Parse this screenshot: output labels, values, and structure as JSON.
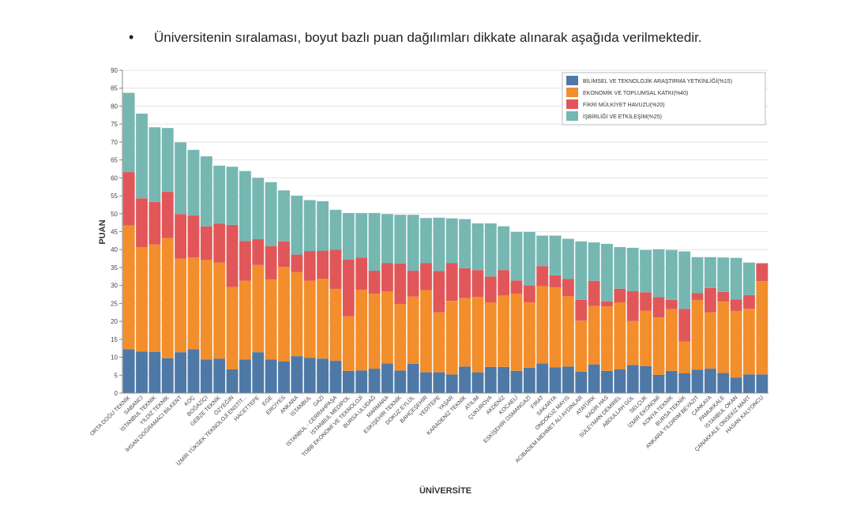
{
  "bullet": {
    "symbol": "•",
    "text": "Üniversitenin sıralaması, boyut bazlı puan dağılımları dikkate alınarak aşağıda verilmektedir."
  },
  "chart_data": {
    "type": "bar",
    "stacked": true,
    "title": "",
    "xlabel": "ÜNİVERSİTE",
    "ylabel": "PUAN",
    "ylim": [
      0,
      90
    ],
    "yticks": [
      0,
      5,
      10,
      15,
      20,
      25,
      30,
      35,
      40,
      45,
      50,
      55,
      60,
      65,
      70,
      75,
      80,
      85,
      90
    ],
    "grid": true,
    "legend_position": "top-right",
    "categories": [
      "ORTA DOĞU TEKNİK",
      "SABANCI",
      "İSTANBUL TEKNİK",
      "YILDIZ TEKNİK",
      "İHSAN DOĞRAMACI BİLKENT",
      "KOÇ",
      "BOĞAZİÇİ",
      "GEBZE TEKNİK",
      "ÖZYEĞİN",
      "İZMİR YÜKSEK TEKNOLOJİ ENSTİT...",
      "HACETTEPE",
      "EGE",
      "ERCİYES",
      "ANKARA",
      "İSTANBUL",
      "GAZİ",
      "İSTANBUL - CERRAHPAŞA",
      "İSTANBUL MEDİPOL",
      "TOBB EKONOMİ VE TEKNOLOJİ",
      "BURSA ULUDAĞ",
      "MARMARA",
      "ESKİŞEHİR TEKNİK",
      "DOKUZ EYLÜL",
      "BAHÇEŞEHİR",
      "YEDİTEPE",
      "YAŞAR",
      "KARADENİZ TEKNİK",
      "ATILIM",
      "ÇUKUROVA",
      "AKDENİZ",
      "KOCAELİ",
      "ESKİŞEHİR OSMANGAZİ",
      "FIRAT",
      "SAKARYA",
      "ONDOKUZ MAYIS",
      "ACIBADEM MEHMET ALİ AYDINLAR",
      "ATATÜRK",
      "KADİR HAS",
      "SÜLEYMAN DEMİREL",
      "ABDULLAH GÜL",
      "SELÇUK",
      "İZMİR EKONOMİ",
      "KONYA TEKNİK",
      "BURSA TEKNİK",
      "ANKARA YILDIRIM BEYAZIT",
      "ÇANKAYA",
      "PAMUKKALE",
      "İSTANBUL OKAN",
      "ÇANAKKALE ONSEKİZ MART",
      "HASAN KALYONCU"
    ],
    "series": [
      {
        "name": "BİLİMSEL VE TEKNOLOJİK ARAŞTIRMA YETKİNLİĞİ(%15)",
        "color": "#4e79a7",
        "values": [
          12.2,
          11.6,
          11.5,
          9.7,
          11.4,
          12.2,
          9.4,
          9.6,
          6.6,
          9.4,
          11.4,
          9.4,
          8.8,
          10.3,
          9.8,
          9.6,
          9.0,
          6.2,
          6.3,
          6.8,
          8.3,
          6.3,
          8.2,
          5.8,
          5.8,
          5.2,
          7.4,
          5.8,
          7.3,
          7.3,
          6.2,
          7.1,
          8.3,
          7.2,
          7.4,
          6.0,
          8.0,
          6.2,
          6.6,
          7.8,
          7.5,
          5.1,
          6.2,
          5.5,
          6.5,
          6.8,
          5.6,
          4.3,
          5.2,
          5.2
        ]
      },
      {
        "name": "EKONOMİK VE TOPLUMSAL KATKI(%40)",
        "color": "#f28e2b",
        "values": [
          34.5,
          29.1,
          29.9,
          33.5,
          26.1,
          25.6,
          27.7,
          26.8,
          23.0,
          21.9,
          24.3,
          22.3,
          26.4,
          23.4,
          21.5,
          22.3,
          20.0,
          15.2,
          22.5,
          20.9,
          20.0,
          18.5,
          18.7,
          22.9,
          16.7,
          20.5,
          19.1,
          21.0,
          18.0,
          19.9,
          21.5,
          18.2,
          21.5,
          22.3,
          19.6,
          14.2,
          16.3,
          18.0,
          18.7,
          12.3,
          15.5,
          16.0,
          17.2,
          8.9,
          19.4,
          15.7,
          19.9,
          18.6,
          18.3,
          26.0
        ]
      },
      {
        "name": "FİKRİ MÜLKİYET HAVUZU(%20)",
        "color": "#e15759",
        "values": [
          14.9,
          13.6,
          11.9,
          12.9,
          12.4,
          11.7,
          9.4,
          10.8,
          17.3,
          11.1,
          7.2,
          9.3,
          7.1,
          4.9,
          8.3,
          7.8,
          11.0,
          15.8,
          9.0,
          6.4,
          7.9,
          11.3,
          7.2,
          7.5,
          11.5,
          10.5,
          8.3,
          7.5,
          7.2,
          7.1,
          3.7,
          4.7,
          5.6,
          3.3,
          4.8,
          5.8,
          7.0,
          1.4,
          3.8,
          8.3,
          5.1,
          5.7,
          2.6,
          9.1,
          2.0,
          6.8,
          2.7,
          3.2,
          3.8,
          5.0
        ]
      },
      {
        "name": "İŞBİRLİĞİ VE ETKİLEŞİM(%25)",
        "color": "#76b7b2",
        "values": [
          22.1,
          23.6,
          20.8,
          17.8,
          20.0,
          18.3,
          19.5,
          16.2,
          16.2,
          19.5,
          17.1,
          17.8,
          14.2,
          16.4,
          14.2,
          13.8,
          11.1,
          13.0,
          12.4,
          16.1,
          13.7,
          13.6,
          15.6,
          12.6,
          14.9,
          12.5,
          13.7,
          13.0,
          14.8,
          12.2,
          13.5,
          14.9,
          8.5,
          11.1,
          11.2,
          16.3,
          10.7,
          16.0,
          11.6,
          12.1,
          11.8,
          13.3,
          13.9,
          16.0,
          10.0,
          8.6,
          9.6,
          11.6,
          9.1,
          0.0
        ]
      }
    ]
  }
}
